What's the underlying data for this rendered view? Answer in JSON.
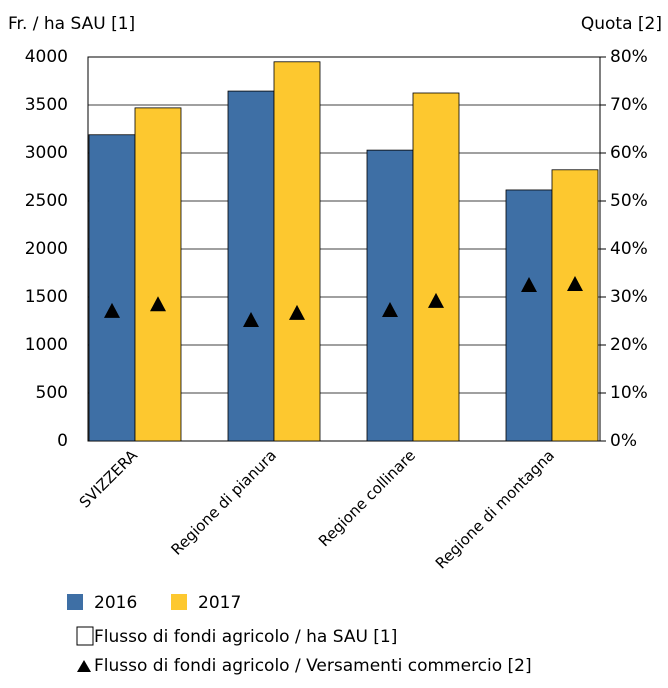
{
  "chart_data": {
    "type": "bar",
    "y_label": "Fr. / ha SAU [1]",
    "y2_label": "Quota [2]",
    "categories": [
      "SVIZZERA",
      "Regione di pianura",
      "Regione collinare",
      "Regione di montagna"
    ],
    "series": [
      {
        "name": "2016",
        "color": "#3e6fa5",
        "values": [
          3190,
          3645,
          3030,
          2615
        ]
      },
      {
        "name": "2017",
        "color": "#fdc82f",
        "values": [
          3470,
          3950,
          3625,
          2825
        ]
      },
      {
        "name": "2016",
        "axis": "y2",
        "marker": "triangle",
        "values": [
          27.1,
          25.2,
          27.3,
          32.5
        ]
      },
      {
        "name": "2017",
        "axis": "y2",
        "marker": "triangle",
        "values": [
          28.5,
          26.7,
          29.2,
          32.7
        ]
      }
    ],
    "legend_notes": [
      "Flusso di fondi agricolo / ha SAU [1]",
      "Flusso di fondi agricolo / Versamenti commercio [2]"
    ],
    "ylim": [
      0,
      4000
    ],
    "yticks": [
      0,
      500,
      1000,
      1500,
      2000,
      2500,
      3000,
      3500,
      4000
    ],
    "y2lim": [
      0,
      80
    ],
    "y2ticks": [
      {
        "value": 0,
        "label": "0%"
      },
      {
        "value": 10,
        "label": "10%"
      },
      {
        "value": 20,
        "label": "20%"
      },
      {
        "value": 30,
        "label": "30%"
      },
      {
        "value": 40,
        "label": "40%"
      },
      {
        "value": 50,
        "label": "50%"
      },
      {
        "value": 60,
        "label": "60%"
      },
      {
        "value": 70,
        "label": "70%"
      },
      {
        "value": 80,
        "label": "80%"
      }
    ],
    "grid": true
  }
}
